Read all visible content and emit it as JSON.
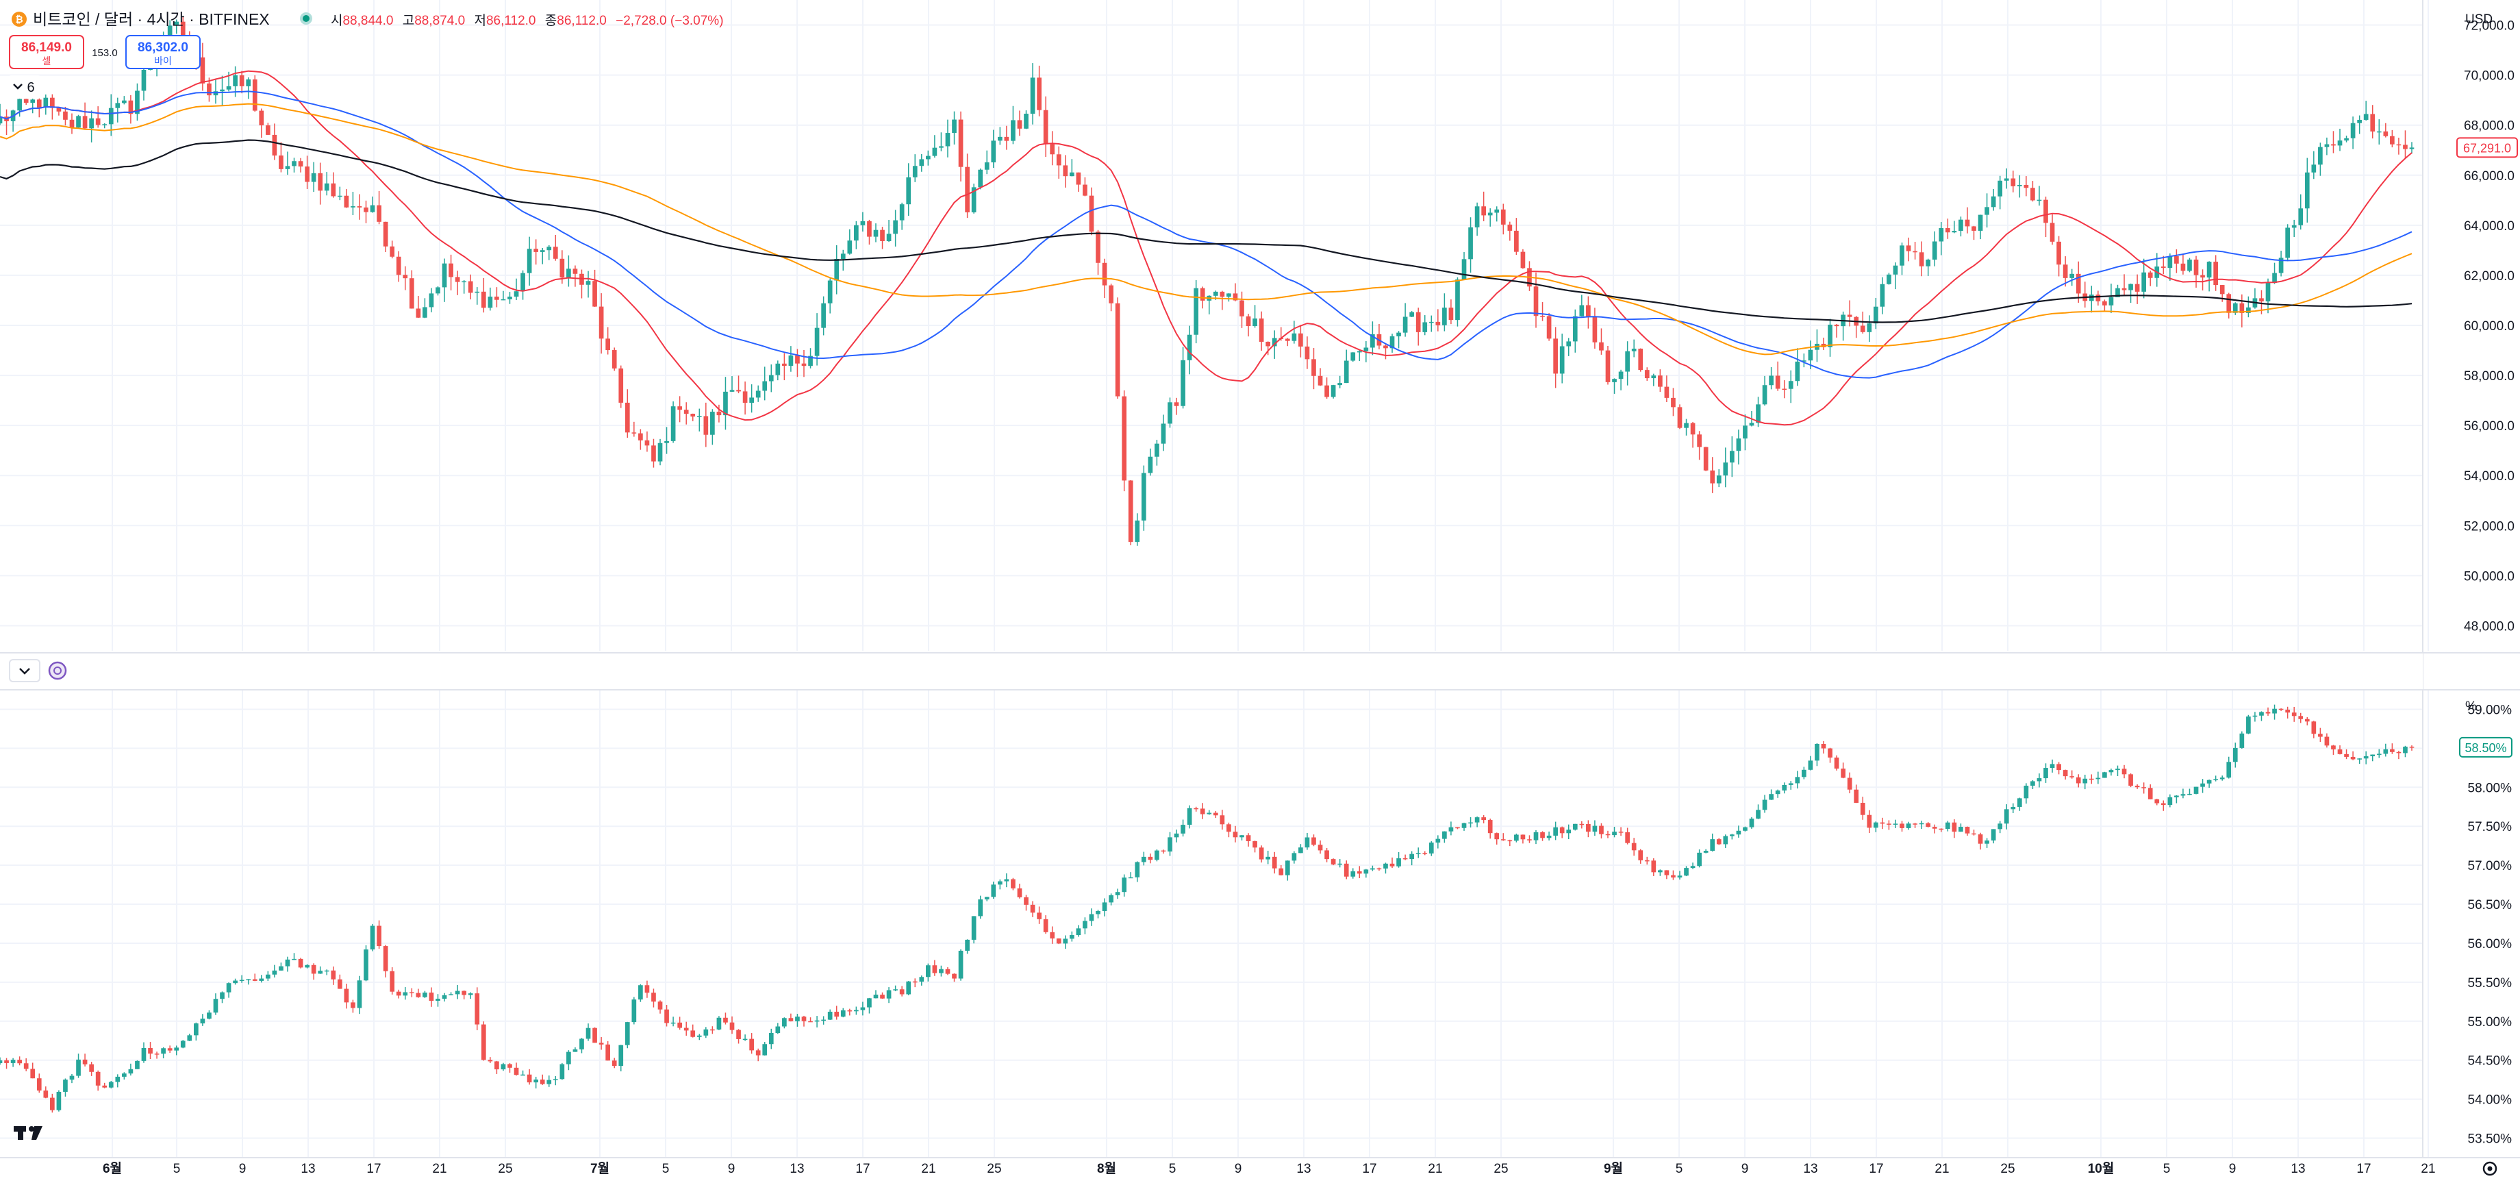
{
  "header": {
    "symbol_title": "비트코인 / 달러 · 4시간 · BITFINEX",
    "ohlc": {
      "open_label": "시",
      "open": "88,844.0",
      "high_label": "고",
      "high": "88,874.0",
      "low_label": "저",
      "low": "86,112.0",
      "close_label": "종",
      "close": "86,112.0",
      "change": "−2,728.0 (−3.07%)"
    },
    "sell_price": "86,149.0",
    "sell_label": "셀",
    "spread": "153.0",
    "buy_price": "86,302.0",
    "buy_label": "바이",
    "indicator_count": "6",
    "currency": "USD",
    "percent_unit": "%",
    "price_badge": "67,291.0",
    "pct_badge": "58.50%"
  },
  "colors": {
    "up": "#26a69a",
    "down": "#ef5350",
    "ma_fast": "#f23645",
    "ma_mid": "#2962ff",
    "ma_slow": "#ff9800",
    "ma_long": "#131722",
    "grid": "#f0f3fa",
    "axis_text": "#131722"
  },
  "icons": {
    "logo": "bitcoin-logo-icon",
    "market_status": "market-open-dot-icon",
    "collapse": "chevron-down-icon",
    "sync": "sync-icon",
    "settings": "gear-icon",
    "brand": "tradingview-logo-icon"
  },
  "chart_data": [
    {
      "type": "candlestick",
      "title": "비트코인 / 달러 · 4시간 · BITFINEX",
      "ylabel": "USD",
      "ylim": [
        47000,
        73000
      ],
      "y_ticks": [
        "72,000.0",
        "70,000.0",
        "68,000.0",
        "66,000.0",
        "64,000.0",
        "62,000.0",
        "60,000.0",
        "58,000.0",
        "56,000.0",
        "54,000.0",
        "52,000.0",
        "50,000.0",
        "48,000.0"
      ],
      "x_ticks": [
        "6월",
        "5",
        "9",
        "13",
        "17",
        "21",
        "25",
        "7월",
        "5",
        "9",
        "13",
        "17",
        "21",
        "25",
        "8월",
        "5",
        "9",
        "13",
        "17",
        "21",
        "25",
        "9월",
        "5",
        "9",
        "13",
        "17",
        "21",
        "25",
        "10월",
        "5",
        "9",
        "13",
        "17",
        "21"
      ],
      "close_path": [
        [
          0,
          68200
        ],
        [
          6,
          69000
        ],
        [
          10,
          68000
        ],
        [
          16,
          68300
        ],
        [
          20,
          68800
        ],
        [
          24,
          71200
        ],
        [
          27,
          71800
        ],
        [
          32,
          69500
        ],
        [
          38,
          69600
        ],
        [
          42,
          66500
        ],
        [
          48,
          66000
        ],
        [
          52,
          65000
        ],
        [
          55,
          64800
        ],
        [
          58,
          64200
        ],
        [
          64,
          60500
        ],
        [
          68,
          62200
        ],
        [
          72,
          61200
        ],
        [
          78,
          61000
        ],
        [
          82,
          63200
        ],
        [
          90,
          61500
        ],
        [
          96,
          56000
        ],
        [
          100,
          54500
        ],
        [
          104,
          57000
        ],
        [
          108,
          55800
        ],
        [
          112,
          57500
        ],
        [
          116,
          57200
        ],
        [
          120,
          58300
        ],
        [
          124,
          59000
        ],
        [
          128,
          62500
        ],
        [
          132,
          64000
        ],
        [
          136,
          63500
        ],
        [
          140,
          66500
        ],
        [
          144,
          67500
        ],
        [
          146,
          67800
        ],
        [
          148,
          64500
        ],
        [
          152,
          67400
        ],
        [
          156,
          68000
        ],
        [
          158,
          69800
        ],
        [
          160,
          67600
        ],
        [
          166,
          65000
        ],
        [
          170,
          60500
        ],
        [
          173,
          51000
        ],
        [
          176,
          55000
        ],
        [
          180,
          57000
        ],
        [
          183,
          61200
        ],
        [
          188,
          61100
        ],
        [
          194,
          59500
        ],
        [
          198,
          59500
        ],
        [
          203,
          57200
        ],
        [
          209,
          59200
        ],
        [
          212,
          59500
        ],
        [
          216,
          60100
        ],
        [
          222,
          60400
        ],
        [
          226,
          64500
        ],
        [
          230,
          64200
        ],
        [
          234,
          61500
        ],
        [
          238,
          58500
        ],
        [
          242,
          60600
        ],
        [
          246,
          58000
        ],
        [
          250,
          58800
        ],
        [
          254,
          57300
        ],
        [
          258,
          55800
        ],
        [
          262,
          54000
        ],
        [
          266,
          55500
        ],
        [
          270,
          57500
        ],
        [
          274,
          58000
        ],
        [
          278,
          59200
        ],
        [
          282,
          60300
        ],
        [
          286,
          60000
        ],
        [
          290,
          62800
        ],
        [
          294,
          62600
        ],
        [
          298,
          63800
        ],
        [
          302,
          63800
        ],
        [
          306,
          65600
        ],
        [
          310,
          65900
        ],
        [
          314,
          63500
        ],
        [
          318,
          61000
        ],
        [
          322,
          60600
        ],
        [
          326,
          61500
        ],
        [
          330,
          62200
        ],
        [
          334,
          62600
        ],
        [
          338,
          62100
        ],
        [
          342,
          60500
        ],
        [
          346,
          60700
        ],
        [
          350,
          63700
        ],
        [
          354,
          66500
        ],
        [
          358,
          67700
        ],
        [
          362,
          68300
        ],
        [
          366,
          67600
        ],
        [
          369,
          67300
        ]
      ],
      "series": [
        {
          "name": "",
          "type": "moving-average",
          "period": 20
        },
        {
          "name": "",
          "type": "moving-average",
          "period": 50
        },
        {
          "name": "",
          "type": "moving-average",
          "period": 100
        },
        {
          "name": "",
          "type": "moving-average",
          "period": 200
        }
      ]
    },
    {
      "type": "candlestick",
      "ylabel": "%",
      "ylim": [
        53.25,
        59.25
      ],
      "y_ticks": [
        "59.00%",
        "58.50%",
        "58.00%",
        "57.50%",
        "57.00%",
        "56.50%",
        "56.00%",
        "55.50%",
        "55.00%",
        "54.50%",
        "54.00%",
        "53.50%"
      ],
      "close_path": [
        [
          0,
          54.5
        ],
        [
          4,
          54.4
        ],
        [
          8,
          53.9
        ],
        [
          12,
          54.5
        ],
        [
          16,
          54.1
        ],
        [
          22,
          54.6
        ],
        [
          28,
          54.7
        ],
        [
          34,
          55.4
        ],
        [
          40,
          55.6
        ],
        [
          44,
          55.8
        ],
        [
          50,
          55.6
        ],
        [
          54,
          55.2
        ],
        [
          57,
          56.2
        ],
        [
          60,
          55.4
        ],
        [
          66,
          55.3
        ],
        [
          72,
          55.4
        ],
        [
          74,
          54.5
        ],
        [
          80,
          54.3
        ],
        [
          84,
          54.2
        ],
        [
          90,
          54.9
        ],
        [
          94,
          54.4
        ],
        [
          98,
          55.5
        ],
        [
          102,
          55.0
        ],
        [
          106,
          54.8
        ],
        [
          110,
          55.0
        ],
        [
          116,
          54.6
        ],
        [
          120,
          55.0
        ],
        [
          128,
          55.1
        ],
        [
          134,
          55.3
        ],
        [
          138,
          55.4
        ],
        [
          142,
          55.7
        ],
        [
          146,
          55.6
        ],
        [
          150,
          56.6
        ],
        [
          154,
          56.8
        ],
        [
          158,
          56.4
        ],
        [
          162,
          56.0
        ],
        [
          166,
          56.3
        ],
        [
          170,
          56.6
        ],
        [
          174,
          57.0
        ],
        [
          178,
          57.2
        ],
        [
          182,
          57.7
        ],
        [
          186,
          57.6
        ],
        [
          192,
          57.2
        ],
        [
          196,
          56.9
        ],
        [
          200,
          57.3
        ],
        [
          206,
          56.9
        ],
        [
          212,
          57.0
        ],
        [
          218,
          57.2
        ],
        [
          222,
          57.5
        ],
        [
          226,
          57.6
        ],
        [
          230,
          57.3
        ],
        [
          236,
          57.4
        ],
        [
          242,
          57.5
        ],
        [
          248,
          57.4
        ],
        [
          252,
          57.0
        ],
        [
          256,
          56.8
        ],
        [
          262,
          57.3
        ],
        [
          266,
          57.4
        ],
        [
          270,
          57.8
        ],
        [
          276,
          58.2
        ],
        [
          278,
          58.6
        ],
        [
          282,
          58.1
        ],
        [
          286,
          57.5
        ],
        [
          292,
          57.5
        ],
        [
          298,
          57.5
        ],
        [
          304,
          57.3
        ],
        [
          308,
          57.8
        ],
        [
          314,
          58.3
        ],
        [
          318,
          58.1
        ],
        [
          324,
          58.2
        ],
        [
          330,
          57.8
        ],
        [
          334,
          57.9
        ],
        [
          340,
          58.1
        ],
        [
          344,
          58.9
        ],
        [
          348,
          59.0
        ],
        [
          352,
          58.9
        ],
        [
          356,
          58.5
        ],
        [
          358,
          58.4
        ],
        [
          369,
          58.5
        ]
      ]
    }
  ]
}
